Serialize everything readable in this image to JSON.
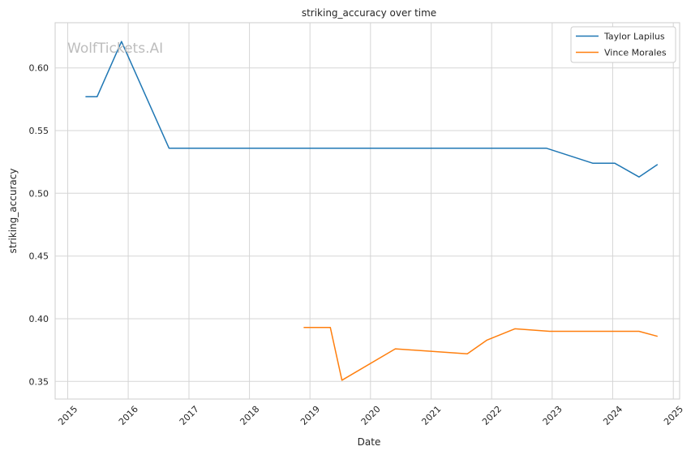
{
  "chart_data": {
    "type": "line",
    "title": "striking_accuracy over time",
    "xlabel": "Date",
    "ylabel": "striking_accuracy",
    "watermark": "WolfTickets.AI",
    "x_axis": {
      "kind": "date",
      "range": [
        "2014-10-17",
        "2025-02-08"
      ],
      "ticks": [
        "2015-01-01",
        "2016-01-01",
        "2017-01-01",
        "2018-01-01",
        "2019-01-01",
        "2020-01-01",
        "2021-01-01",
        "2022-01-01",
        "2023-01-01",
        "2024-01-01",
        "2025-01-01"
      ],
      "tick_labels": [
        "2015",
        "2016",
        "2017",
        "2018",
        "2019",
        "2020",
        "2021",
        "2022",
        "2023",
        "2024",
        "2025"
      ]
    },
    "ylim": [
      0.336,
      0.636
    ],
    "y_ticks": [
      0.35,
      0.4,
      0.45,
      0.5,
      0.55,
      0.6
    ],
    "y_tick_labels": [
      "0.35",
      "0.40",
      "0.45",
      "0.50",
      "0.55",
      "0.60"
    ],
    "grid": true,
    "legend_position": "top-right",
    "series": [
      {
        "name": "Taylor Lapilus",
        "color": "#1f77b4",
        "points": [
          {
            "x": "2015-04-18",
            "y": 0.577
          },
          {
            "x": "2015-06-27",
            "y": 0.577
          },
          {
            "x": "2015-11-21",
            "y": 0.621
          },
          {
            "x": "2016-09-03",
            "y": 0.536
          },
          {
            "x": "2022-11-26",
            "y": 0.536
          },
          {
            "x": "2023-09-02",
            "y": 0.524
          },
          {
            "x": "2024-01-13",
            "y": 0.524
          },
          {
            "x": "2024-06-08",
            "y": 0.513
          },
          {
            "x": "2024-09-28",
            "y": 0.523
          }
        ]
      },
      {
        "name": "Vince Morales",
        "color": "#ff7f0e",
        "points": [
          {
            "x": "2018-11-24",
            "y": 0.393
          },
          {
            "x": "2019-05-04",
            "y": 0.393
          },
          {
            "x": "2019-07-13",
            "y": 0.351
          },
          {
            "x": "2020-05-30",
            "y": 0.376
          },
          {
            "x": "2021-08-07",
            "y": 0.372
          },
          {
            "x": "2021-12-04",
            "y": 0.383
          },
          {
            "x": "2022-05-21",
            "y": 0.392
          },
          {
            "x": "2022-12-17",
            "y": 0.39
          },
          {
            "x": "2024-06-08",
            "y": 0.39
          },
          {
            "x": "2024-09-28",
            "y": 0.386
          }
        ]
      }
    ]
  }
}
